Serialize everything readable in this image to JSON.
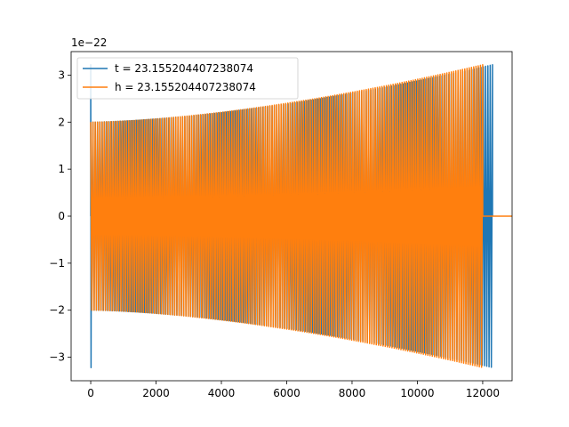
{
  "chart_data": {
    "type": "line",
    "title": "",
    "xlabel": "",
    "ylabel": "",
    "y_offset_label": "1e−22",
    "xlim": [
      -600,
      12900
    ],
    "ylim": [
      -3.5,
      3.5
    ],
    "x_ticks": [
      0,
      2000,
      4000,
      6000,
      8000,
      10000,
      12000
    ],
    "x_tick_labels": [
      "0",
      "2000",
      "4000",
      "6000",
      "8000",
      "10000",
      "12000"
    ],
    "y_ticks": [
      -3,
      -2,
      -1,
      0,
      1,
      2,
      3
    ],
    "y_tick_labels": [
      "−3",
      "−2",
      "−1",
      "0",
      "1",
      "2",
      "3"
    ],
    "grid": false,
    "legend_position": "upper-left",
    "series": [
      {
        "name": "t = 23.155204407238074",
        "color": "#1f77b4",
        "envelope_x": [
          0,
          12300
        ],
        "envelope_y": [
          2.0,
          3.22
        ],
        "edge_spike_max": 3.22,
        "oscillation_count": 175
      },
      {
        "name": "h = 23.155204407238074",
        "color": "#ff7f0e",
        "envelope_x": [
          0,
          12000
        ],
        "envelope_y": [
          2.0,
          3.22
        ],
        "tail_x": [
          12000,
          12900
        ],
        "tail_y": 0,
        "oscillation_count": 175
      }
    ]
  }
}
